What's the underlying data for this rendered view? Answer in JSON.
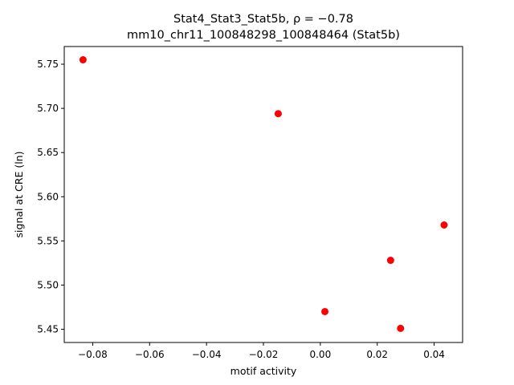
{
  "chart_data": {
    "type": "scatter",
    "title_line1": "Stat4_Stat3_Stat5b, ρ = −0.78",
    "title_line2": "mm10_chr11_100848298_100848464 (Stat5b)",
    "xlabel": "motif activity",
    "ylabel": "signal at CRE (ln)",
    "xlim": [
      -0.09,
      0.05
    ],
    "ylim": [
      5.435,
      5.77
    ],
    "xticks": [
      -0.08,
      -0.06,
      -0.04,
      -0.02,
      0.0,
      0.02,
      0.04
    ],
    "xtick_labels": [
      "−0.08",
      "−0.06",
      "−0.04",
      "−0.02",
      "0.00",
      "0.02",
      "0.04"
    ],
    "yticks": [
      5.45,
      5.5,
      5.55,
      5.6,
      5.65,
      5.7,
      5.75
    ],
    "ytick_labels": [
      "5.45",
      "5.50",
      "5.55",
      "5.60",
      "5.65",
      "5.70",
      "5.75"
    ],
    "point_color": "#ff0000",
    "points": [
      {
        "x": -0.0834,
        "y": 5.755
      },
      {
        "x": -0.0148,
        "y": 5.694
      },
      {
        "x": 0.0435,
        "y": 5.568
      },
      {
        "x": 0.0247,
        "y": 5.528
      },
      {
        "x": 0.0016,
        "y": 5.47
      },
      {
        "x": 0.0282,
        "y": 5.451
      }
    ],
    "grid": false,
    "legend": "none"
  }
}
